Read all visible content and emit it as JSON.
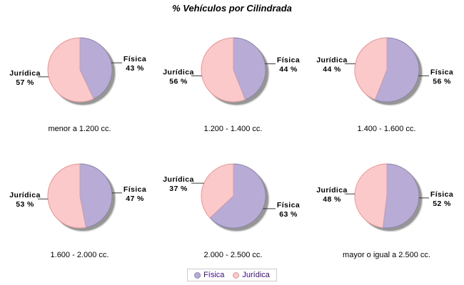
{
  "title": "% Vehículos por Cilindrada",
  "value_suffix": " %",
  "series": [
    {
      "name": "Física",
      "fill": "#B8ACD6",
      "stroke": "#8F82B0"
    },
    {
      "name": "Jurídica",
      "fill": "#FBC9C9",
      "stroke": "#DC9A9A"
    }
  ],
  "colors": {
    "background": "#FFFFFF",
    "shadow": "#8F8F8F",
    "leader_line": "#3A3A3A",
    "legend_text": "#3B0B75",
    "legend_border": "#CBCBCB",
    "label_text": "#000000"
  },
  "chart_data": [
    {
      "type": "pie",
      "category": "menor a 1.200 cc.",
      "labels": [
        "Física",
        "Jurídica"
      ],
      "values": [
        43,
        57
      ]
    },
    {
      "type": "pie",
      "category": "1.200 - 1.400 cc.",
      "labels": [
        "Física",
        "Jurídica"
      ],
      "values": [
        44,
        56
      ]
    },
    {
      "type": "pie",
      "category": "1.400 - 1.600 cc.",
      "labels": [
        "Física",
        "Jurídica"
      ],
      "values": [
        56,
        44
      ]
    },
    {
      "type": "pie",
      "category": "1.600 - 2.000 cc.",
      "labels": [
        "Física",
        "Jurídica"
      ],
      "values": [
        47,
        53
      ]
    },
    {
      "type": "pie",
      "category": "2.000 - 2.500 cc.",
      "labels": [
        "Física",
        "Jurídica"
      ],
      "values": [
        63,
        37
      ]
    },
    {
      "type": "pie",
      "category": "mayor o igual a 2.500 cc.",
      "labels": [
        "Física",
        "Jurídica"
      ],
      "values": [
        52,
        48
      ]
    }
  ],
  "layout": {
    "grid": "2x3",
    "legend_position": "bottom-center",
    "slice_start": "top-clockwise"
  }
}
